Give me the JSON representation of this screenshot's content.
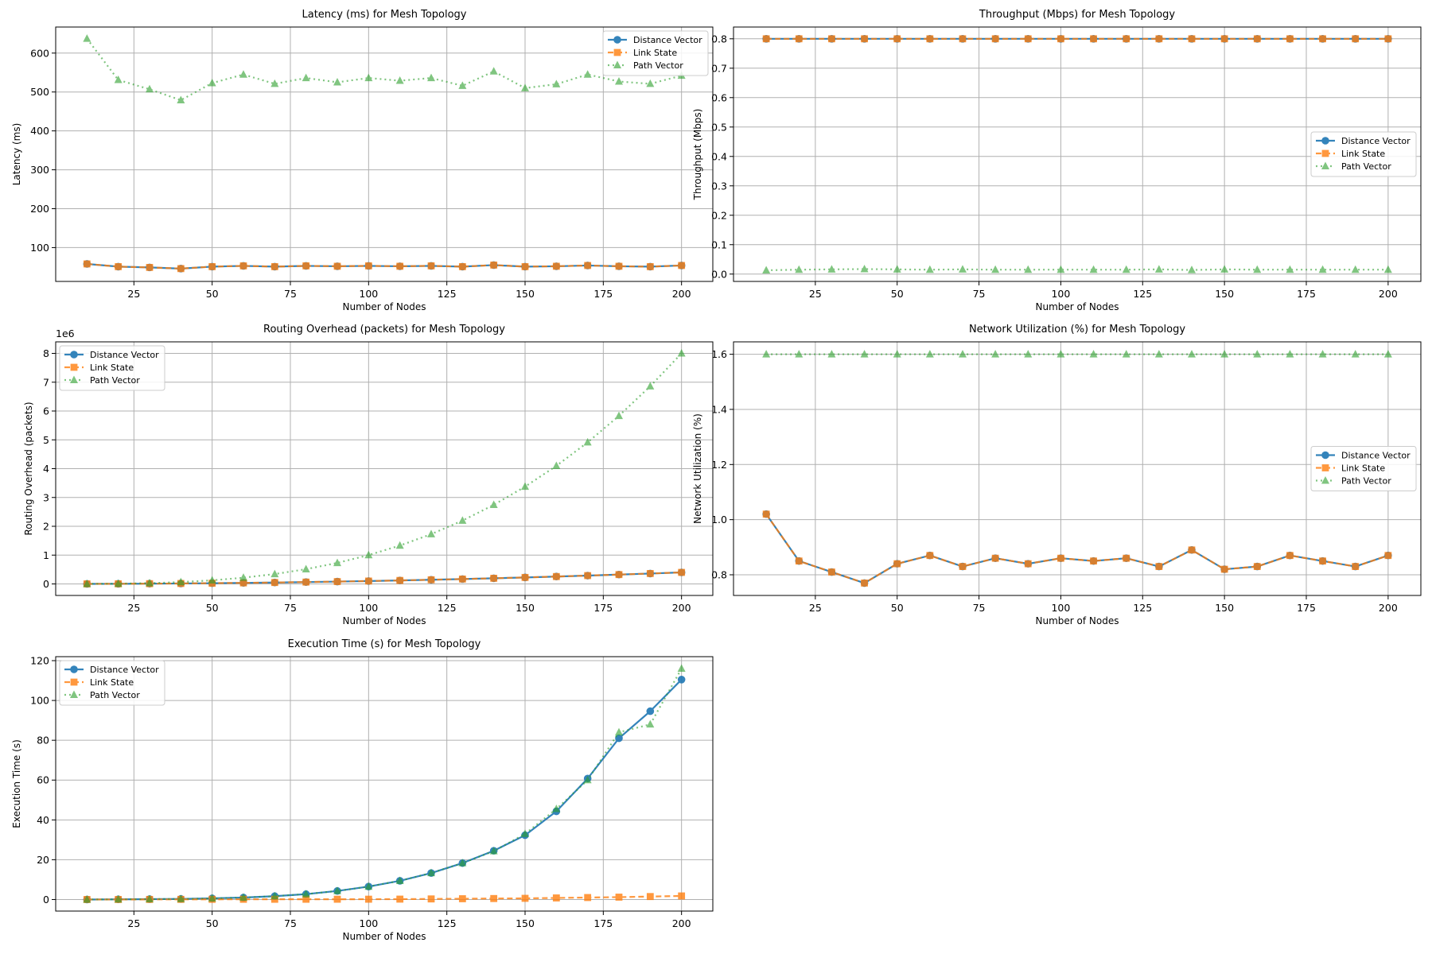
{
  "colors": {
    "distance_vector": "#1f77b4",
    "link_state": "#ff7f0e",
    "path_vector": "#2ca02c",
    "grid": "#b0b0b0"
  },
  "legend_labels": [
    "Distance Vector",
    "Link State",
    "Path Vector"
  ],
  "chart_data": [
    {
      "type": "line",
      "title": "Latency (ms) for Mesh Topology",
      "xlabel": "Number of Nodes",
      "ylabel": "Latency (ms)",
      "xlim": [
        0,
        210
      ],
      "ylim": [
        13,
        667
      ],
      "xticks": [
        25,
        50,
        75,
        100,
        125,
        150,
        175,
        200
      ],
      "yticks": [
        100,
        200,
        300,
        400,
        500,
        600
      ],
      "ytick_labels": [
        "100",
        "200",
        "300",
        "400",
        "500",
        "600"
      ],
      "legend_loc": "upper right",
      "grid": true,
      "x": [
        10,
        20,
        30,
        40,
        50,
        60,
        70,
        80,
        90,
        100,
        110,
        120,
        130,
        140,
        150,
        160,
        170,
        180,
        190,
        200
      ],
      "series": [
        {
          "name": "Distance Vector",
          "values": [
            58,
            51,
            49,
            46,
            51,
            53,
            51,
            53,
            52,
            53,
            52,
            53,
            51,
            55,
            51,
            52,
            54,
            52,
            51,
            54
          ]
        },
        {
          "name": "Link State",
          "values": [
            58,
            51,
            49,
            46,
            51,
            53,
            51,
            53,
            52,
            53,
            52,
            53,
            51,
            55,
            51,
            52,
            54,
            52,
            51,
            54
          ]
        },
        {
          "name": "Path Vector",
          "values": [
            637,
            531,
            507,
            479,
            523,
            545,
            521,
            536,
            525,
            536,
            529,
            536,
            516,
            553,
            510,
            520,
            545,
            527,
            521,
            542
          ]
        }
      ]
    },
    {
      "type": "line",
      "title": "Throughput (Mbps) for Mesh Topology",
      "xlabel": "Number of Nodes",
      "ylabel": "Throughput (Mbps)",
      "xlim": [
        0,
        210
      ],
      "ylim": [
        -0.025,
        0.84
      ],
      "xticks": [
        25,
        50,
        75,
        100,
        125,
        150,
        175,
        200
      ],
      "yticks": [
        0,
        0.1,
        0.2,
        0.3,
        0.4,
        0.5,
        0.6,
        0.7,
        0.8
      ],
      "ytick_labels": [
        "0.0",
        "0.1",
        "0.2",
        "0.3",
        "0.4",
        "0.5",
        "0.6",
        "0.7",
        "0.8"
      ],
      "legend_loc": "center right",
      "grid": true,
      "x": [
        10,
        20,
        30,
        40,
        50,
        60,
        70,
        80,
        90,
        100,
        110,
        120,
        130,
        140,
        150,
        160,
        170,
        180,
        190,
        200
      ],
      "series": [
        {
          "name": "Distance Vector",
          "values": [
            0.8,
            0.8,
            0.8,
            0.8,
            0.8,
            0.8,
            0.8,
            0.8,
            0.8,
            0.8,
            0.8,
            0.8,
            0.8,
            0.8,
            0.8,
            0.8,
            0.8,
            0.8,
            0.8,
            0.8
          ]
        },
        {
          "name": "Link State",
          "values": [
            0.8,
            0.8,
            0.8,
            0.8,
            0.8,
            0.8,
            0.8,
            0.8,
            0.8,
            0.8,
            0.8,
            0.8,
            0.8,
            0.8,
            0.8,
            0.8,
            0.8,
            0.8,
            0.8,
            0.8
          ]
        },
        {
          "name": "Path Vector",
          "values": [
            0.013,
            0.015,
            0.016,
            0.017,
            0.016,
            0.015,
            0.016,
            0.015,
            0.015,
            0.015,
            0.015,
            0.015,
            0.016,
            0.014,
            0.016,
            0.015,
            0.015,
            0.015,
            0.015,
            0.015
          ]
        }
      ]
    },
    {
      "type": "line",
      "title": "Routing Overhead (packets) for Mesh Topology",
      "xlabel": "Number of Nodes",
      "ylabel": "Routing Overhead (packets)",
      "offset_label": "1e6",
      "xlim": [
        0,
        210
      ],
      "ylim": [
        -400000,
        8400000
      ],
      "xticks": [
        25,
        50,
        75,
        100,
        125,
        150,
        175,
        200
      ],
      "yticks": [
        0,
        1000000,
        2000000,
        3000000,
        4000000,
        5000000,
        6000000,
        7000000,
        8000000
      ],
      "ytick_labels": [
        "0",
        "1",
        "2",
        "3",
        "4",
        "5",
        "6",
        "7",
        "8"
      ],
      "legend_loc": "upper left",
      "grid": true,
      "x": [
        10,
        20,
        30,
        40,
        50,
        60,
        70,
        80,
        90,
        100,
        110,
        120,
        130,
        140,
        150,
        160,
        170,
        180,
        190,
        200
      ],
      "series": [
        {
          "name": "Distance Vector",
          "values": [
            1000,
            4000,
            9000,
            16000,
            25000,
            36000,
            49000,
            64000,
            81000,
            100000,
            121000,
            144000,
            169000,
            196000,
            225000,
            256000,
            289000,
            324000,
            361000,
            400000
          ]
        },
        {
          "name": "Link State",
          "values": [
            1000,
            4000,
            9000,
            16000,
            25000,
            36000,
            49000,
            64000,
            81000,
            100000,
            121000,
            144000,
            169000,
            196000,
            225000,
            256000,
            289000,
            324000,
            361000,
            400000
          ]
        },
        {
          "name": "Path Vector",
          "values": [
            1000,
            8000,
            27000,
            64000,
            125000,
            216000,
            343000,
            512000,
            729000,
            1000000,
            1331000,
            1728000,
            2197000,
            2744000,
            3375000,
            4096000,
            4913000,
            5832000,
            6859000,
            8000000
          ]
        }
      ]
    },
    {
      "type": "line",
      "title": "Network Utilization (%) for Mesh Topology",
      "xlabel": "Number of Nodes",
      "ylabel": "Network Utilization (%)",
      "xlim": [
        0,
        210
      ],
      "ylim": [
        0.725,
        1.645
      ],
      "xticks": [
        25,
        50,
        75,
        100,
        125,
        150,
        175,
        200
      ],
      "yticks": [
        0.8,
        1.0,
        1.2,
        1.4,
        1.6
      ],
      "ytick_labels": [
        "0.8",
        "1.0",
        "1.2",
        "1.4",
        "1.6"
      ],
      "legend_loc": "center right",
      "grid": true,
      "x": [
        10,
        20,
        30,
        40,
        50,
        60,
        70,
        80,
        90,
        100,
        110,
        120,
        130,
        140,
        150,
        160,
        170,
        180,
        190,
        200
      ],
      "series": [
        {
          "name": "Distance Vector",
          "values": [
            1.02,
            0.85,
            0.81,
            0.77,
            0.84,
            0.87,
            0.83,
            0.86,
            0.84,
            0.86,
            0.85,
            0.86,
            0.83,
            0.89,
            0.82,
            0.83,
            0.87,
            0.85,
            0.83,
            0.87
          ]
        },
        {
          "name": "Link State",
          "values": [
            1.02,
            0.85,
            0.81,
            0.77,
            0.84,
            0.87,
            0.83,
            0.86,
            0.84,
            0.86,
            0.85,
            0.86,
            0.83,
            0.89,
            0.82,
            0.83,
            0.87,
            0.85,
            0.83,
            0.87
          ]
        },
        {
          "name": "Path Vector",
          "values": [
            1.6,
            1.6,
            1.6,
            1.6,
            1.6,
            1.6,
            1.6,
            1.6,
            1.6,
            1.6,
            1.6,
            1.6,
            1.6,
            1.6,
            1.6,
            1.6,
            1.6,
            1.6,
            1.6,
            1.6
          ]
        }
      ]
    },
    {
      "type": "line",
      "title": "Execution Time (s) for Mesh Topology",
      "xlabel": "Number of Nodes",
      "ylabel": "Execution Time (s)",
      "xlim": [
        0,
        210
      ],
      "ylim": [
        -5.8,
        122
      ],
      "xticks": [
        25,
        50,
        75,
        100,
        125,
        150,
        175,
        200
      ],
      "yticks": [
        0,
        20,
        40,
        60,
        80,
        100,
        120
      ],
      "ytick_labels": [
        "0",
        "20",
        "40",
        "60",
        "80",
        "100",
        "120"
      ],
      "legend_loc": "upper left",
      "grid": true,
      "x": [
        10,
        20,
        30,
        40,
        50,
        60,
        70,
        80,
        90,
        100,
        110,
        120,
        130,
        140,
        150,
        160,
        170,
        180,
        190,
        200
      ],
      "series": [
        {
          "name": "Distance Vector",
          "values": [
            0.0,
            0.1,
            0.2,
            0.3,
            0.6,
            1.0,
            1.7,
            2.7,
            4.3,
            6.5,
            9.4,
            13.3,
            18.3,
            24.5,
            32.3,
            44.3,
            60.8,
            81.0,
            94.6,
            110.5
          ]
        },
        {
          "name": "Link State",
          "values": [
            0.01,
            0.02,
            0.05,
            0.08,
            0.1,
            0.12,
            0.13,
            0.14,
            0.15,
            0.16,
            0.2,
            0.3,
            0.4,
            0.5,
            0.6,
            0.8,
            1.0,
            1.2,
            1.5,
            1.8
          ]
        },
        {
          "name": "Path Vector",
          "values": [
            0.0,
            0.1,
            0.2,
            0.3,
            0.6,
            1.0,
            1.7,
            2.7,
            4.3,
            6.5,
            9.4,
            13.3,
            18.3,
            24.3,
            33.0,
            45.5,
            60.0,
            84.0,
            88.0,
            116.0
          ]
        }
      ]
    }
  ]
}
